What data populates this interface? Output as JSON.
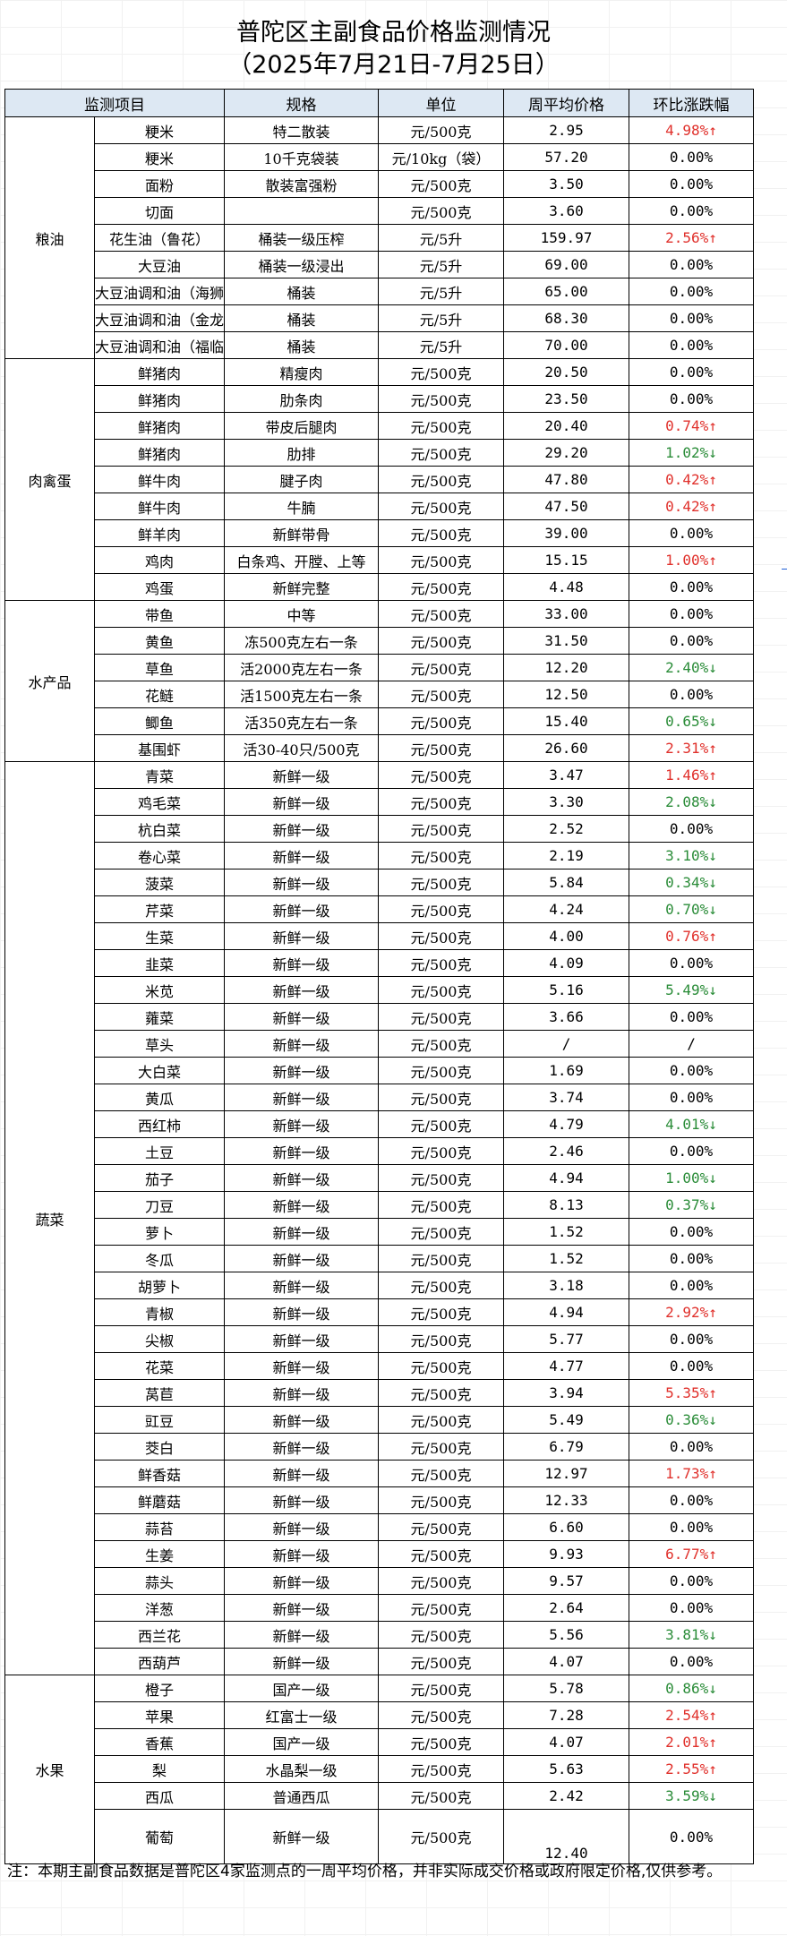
{
  "title": "普陀区主副食品价格监测情况",
  "subtitle": "（2025年7月21日-7月25日）",
  "headers": [
    "监测项目",
    "规格",
    "单位",
    "周平均价格",
    "环比涨跌幅"
  ],
  "groups": [
    {
      "name": "粮油",
      "rows": [
        {
          "item": "粳米",
          "spec": "特二散装",
          "unit": "元/500克",
          "price": "2.95",
          "change": "4.98%↑",
          "dir": "up"
        },
        {
          "item": "粳米",
          "spec": "10千克袋装",
          "unit": "元/10kg（袋）",
          "price": "57.20",
          "change": "0.00%",
          "dir": "flat"
        },
        {
          "item": "面粉",
          "spec": "散装富强粉",
          "unit": "元/500克",
          "price": "3.50",
          "change": "0.00%",
          "dir": "flat"
        },
        {
          "item": "切面",
          "spec": "",
          "unit": "元/500克",
          "price": "3.60",
          "change": "0.00%",
          "dir": "flat"
        },
        {
          "item": "花生油（鲁花）",
          "spec": "桶装一级压榨",
          "unit": "元/5升",
          "price": "159.97",
          "change": "2.56%↑",
          "dir": "up"
        },
        {
          "item": "大豆油",
          "spec": "桶装一级浸出",
          "unit": "元/5升",
          "price": "69.00",
          "change": "0.00%",
          "dir": "flat"
        },
        {
          "item": "大豆油调和油（海狮",
          "spec": "桶装",
          "unit": "元/5升",
          "price": "65.00",
          "change": "0.00%",
          "dir": "flat"
        },
        {
          "item": "大豆油调和油（金龙",
          "spec": "桶装",
          "unit": "元/5升",
          "price": "68.30",
          "change": "0.00%",
          "dir": "flat"
        },
        {
          "item": "大豆油调和油（福临",
          "spec": "桶装",
          "unit": "元/5升",
          "price": "70.00",
          "change": "0.00%",
          "dir": "flat"
        }
      ]
    },
    {
      "name": "肉禽蛋",
      "rows": [
        {
          "item": "鲜猪肉",
          "spec": "精瘦肉",
          "unit": "元/500克",
          "price": "20.50",
          "change": "0.00%",
          "dir": "flat"
        },
        {
          "item": "鲜猪肉",
          "spec": "肋条肉",
          "unit": "元/500克",
          "price": "23.50",
          "change": "0.00%",
          "dir": "flat"
        },
        {
          "item": "鲜猪肉",
          "spec": "带皮后腿肉",
          "unit": "元/500克",
          "price": "20.40",
          "change": "0.74%↑",
          "dir": "up"
        },
        {
          "item": "鲜猪肉",
          "spec": "肋排",
          "unit": "元/500克",
          "price": "29.20",
          "change": "1.02%↓",
          "dir": "down"
        },
        {
          "item": "鲜牛肉",
          "spec": "腱子肉",
          "unit": "元/500克",
          "price": "47.80",
          "change": "0.42%↑",
          "dir": "up"
        },
        {
          "item": "鲜牛肉",
          "spec": "牛腩",
          "unit": "元/500克",
          "price": "47.50",
          "change": "0.42%↑",
          "dir": "up"
        },
        {
          "item": "鲜羊肉",
          "spec": "新鲜带骨",
          "unit": "元/500克",
          "price": "39.00",
          "change": "0.00%",
          "dir": "flat"
        },
        {
          "item": "鸡肉",
          "spec": "白条鸡、开膛、上等",
          "unit": "元/500克",
          "price": "15.15",
          "change": "1.00%↑",
          "dir": "up"
        },
        {
          "item": "鸡蛋",
          "spec": "新鲜完整",
          "unit": "元/500克",
          "price": "4.48",
          "change": "0.00%",
          "dir": "flat"
        }
      ]
    },
    {
      "name": "水产品",
      "rows": [
        {
          "item": "带鱼",
          "spec": "中等",
          "unit": "元/500克",
          "price": "33.00",
          "change": "0.00%",
          "dir": "flat"
        },
        {
          "item": "黄鱼",
          "spec": "冻500克左右一条",
          "unit": "元/500克",
          "price": "31.50",
          "change": "0.00%",
          "dir": "flat"
        },
        {
          "item": "草鱼",
          "spec": "活2000克左右一条",
          "unit": "元/500克",
          "price": "12.20",
          "change": "2.40%↓",
          "dir": "down"
        },
        {
          "item": "花鲢",
          "spec": "活1500克左右一条",
          "unit": "元/500克",
          "price": "12.50",
          "change": "0.00%",
          "dir": "flat"
        },
        {
          "item": "鲫鱼",
          "spec": "活350克左右一条",
          "unit": "元/500克",
          "price": "15.40",
          "change": "0.65%↓",
          "dir": "down"
        },
        {
          "item": "基围虾",
          "spec": "活30-40只/500克",
          "unit": "元/500克",
          "price": "26.60",
          "change": "2.31%↑",
          "dir": "up"
        }
      ]
    },
    {
      "name": "蔬菜",
      "rows": [
        {
          "item": "青菜",
          "spec": "新鲜一级",
          "unit": "元/500克",
          "price": "3.47",
          "change": "1.46%↑",
          "dir": "up"
        },
        {
          "item": "鸡毛菜",
          "spec": "新鲜一级",
          "unit": "元/500克",
          "price": "3.30",
          "change": "2.08%↓",
          "dir": "down"
        },
        {
          "item": "杭白菜",
          "spec": "新鲜一级",
          "unit": "元/500克",
          "price": "2.52",
          "change": "0.00%",
          "dir": "flat"
        },
        {
          "item": "卷心菜",
          "spec": "新鲜一级",
          "unit": "元/500克",
          "price": "2.19",
          "change": "3.10%↓",
          "dir": "down"
        },
        {
          "item": "菠菜",
          "spec": "新鲜一级",
          "unit": "元/500克",
          "price": "5.84",
          "change": "0.34%↓",
          "dir": "down"
        },
        {
          "item": "芹菜",
          "spec": "新鲜一级",
          "unit": "元/500克",
          "price": "4.24",
          "change": "0.70%↓",
          "dir": "down"
        },
        {
          "item": "生菜",
          "spec": "新鲜一级",
          "unit": "元/500克",
          "price": "4.00",
          "change": "0.76%↑",
          "dir": "up"
        },
        {
          "item": "韭菜",
          "spec": "新鲜一级",
          "unit": "元/500克",
          "price": "4.09",
          "change": "0.00%",
          "dir": "flat"
        },
        {
          "item": "米苋",
          "spec": "新鲜一级",
          "unit": "元/500克",
          "price": "5.16",
          "change": "5.49%↓",
          "dir": "down"
        },
        {
          "item": "蕹菜",
          "spec": "新鲜一级",
          "unit": "元/500克",
          "price": "3.66",
          "change": "0.00%",
          "dir": "flat"
        },
        {
          "item": "草头",
          "spec": "新鲜一级",
          "unit": "元/500克",
          "price": "/",
          "change": "/",
          "dir": "flat"
        },
        {
          "item": "大白菜",
          "spec": "新鲜一级",
          "unit": "元/500克",
          "price": "1.69",
          "change": "0.00%",
          "dir": "flat"
        },
        {
          "item": "黄瓜",
          "spec": "新鲜一级",
          "unit": "元/500克",
          "price": "3.74",
          "change": "0.00%",
          "dir": "flat"
        },
        {
          "item": "西红柿",
          "spec": "新鲜一级",
          "unit": "元/500克",
          "price": "4.79",
          "change": "4.01%↓",
          "dir": "down"
        },
        {
          "item": "土豆",
          "spec": "新鲜一级",
          "unit": "元/500克",
          "price": "2.46",
          "change": "0.00%",
          "dir": "flat"
        },
        {
          "item": "茄子",
          "spec": "新鲜一级",
          "unit": "元/500克",
          "price": "4.94",
          "change": "1.00%↓",
          "dir": "down"
        },
        {
          "item": "刀豆",
          "spec": "新鲜一级",
          "unit": "元/500克",
          "price": "8.13",
          "change": "0.37%↓",
          "dir": "down"
        },
        {
          "item": "萝卜",
          "spec": "新鲜一级",
          "unit": "元/500克",
          "price": "1.52",
          "change": "0.00%",
          "dir": "flat"
        },
        {
          "item": "冬瓜",
          "spec": "新鲜一级",
          "unit": "元/500克",
          "price": "1.52",
          "change": "0.00%",
          "dir": "flat"
        },
        {
          "item": "胡萝卜",
          "spec": "新鲜一级",
          "unit": "元/500克",
          "price": "3.18",
          "change": "0.00%",
          "dir": "flat"
        },
        {
          "item": "青椒",
          "spec": "新鲜一级",
          "unit": "元/500克",
          "price": "4.94",
          "change": "2.92%↑",
          "dir": "up"
        },
        {
          "item": "尖椒",
          "spec": "新鲜一级",
          "unit": "元/500克",
          "price": "5.77",
          "change": "0.00%",
          "dir": "flat"
        },
        {
          "item": "花菜",
          "spec": "新鲜一级",
          "unit": "元/500克",
          "price": "4.77",
          "change": "0.00%",
          "dir": "flat"
        },
        {
          "item": "莴苣",
          "spec": "新鲜一级",
          "unit": "元/500克",
          "price": "3.94",
          "change": "5.35%↑",
          "dir": "up"
        },
        {
          "item": "豇豆",
          "spec": "新鲜一级",
          "unit": "元/500克",
          "price": "5.49",
          "change": "0.36%↓",
          "dir": "down"
        },
        {
          "item": "茭白",
          "spec": "新鲜一级",
          "unit": "元/500克",
          "price": "6.79",
          "change": "0.00%",
          "dir": "flat"
        },
        {
          "item": "鲜香菇",
          "spec": "新鲜一级",
          "unit": "元/500克",
          "price": "12.97",
          "change": "1.73%↑",
          "dir": "up"
        },
        {
          "item": "鲜蘑菇",
          "spec": "新鲜一级",
          "unit": "元/500克",
          "price": "12.33",
          "change": "0.00%",
          "dir": "flat"
        },
        {
          "item": "蒜苔",
          "spec": "新鲜一级",
          "unit": "元/500克",
          "price": "6.60",
          "change": "0.00%",
          "dir": "flat"
        },
        {
          "item": "生姜",
          "spec": "新鲜一级",
          "unit": "元/500克",
          "price": "9.93",
          "change": "6.77%↑",
          "dir": "up"
        },
        {
          "item": "蒜头",
          "spec": "新鲜一级",
          "unit": "元/500克",
          "price": "9.57",
          "change": "0.00%",
          "dir": "flat"
        },
        {
          "item": "洋葱",
          "spec": "新鲜一级",
          "unit": "元/500克",
          "price": "2.64",
          "change": "0.00%",
          "dir": "flat"
        },
        {
          "item": "西兰花",
          "spec": "新鲜一级",
          "unit": "元/500克",
          "price": "5.56",
          "change": "3.81%↓",
          "dir": "down"
        },
        {
          "item": "西葫芦",
          "spec": "新鲜一级",
          "unit": "元/500克",
          "price": "4.07",
          "change": "0.00%",
          "dir": "flat"
        }
      ]
    },
    {
      "name": "水果",
      "rows": [
        {
          "item": "橙子",
          "spec": "国产一级",
          "unit": "元/500克",
          "price": "5.78",
          "change": "0.86%↓",
          "dir": "down"
        },
        {
          "item": "苹果",
          "spec": "红富士一级",
          "unit": "元/500克",
          "price": "7.28",
          "change": "2.54%↑",
          "dir": "up"
        },
        {
          "item": "香蕉",
          "spec": "国产一级",
          "unit": "元/500克",
          "price": "4.07",
          "change": "2.01%↑",
          "dir": "up"
        },
        {
          "item": "梨",
          "spec": "水晶梨一级",
          "unit": "元/500克",
          "price": "5.63",
          "change": "2.55%↑",
          "dir": "up"
        },
        {
          "item": "西瓜",
          "spec": "普通西瓜",
          "unit": "元/500克",
          "price": "2.42",
          "change": "3.59%↓",
          "dir": "down"
        },
        {
          "item": "葡萄",
          "spec": "新鲜一级",
          "unit": "元/500克",
          "price": "12.40",
          "change": "0.00%",
          "dir": "flat",
          "tall": true
        }
      ]
    }
  ],
  "note": "注：本期主副食品数据是普陀区4家监测点的一周平均价格，并非实际成交价格或政府限定价格,仅供参考。",
  "colors": {
    "up": "#e0302b",
    "down": "#2a8c38",
    "header_bg": "#dde8f3"
  }
}
